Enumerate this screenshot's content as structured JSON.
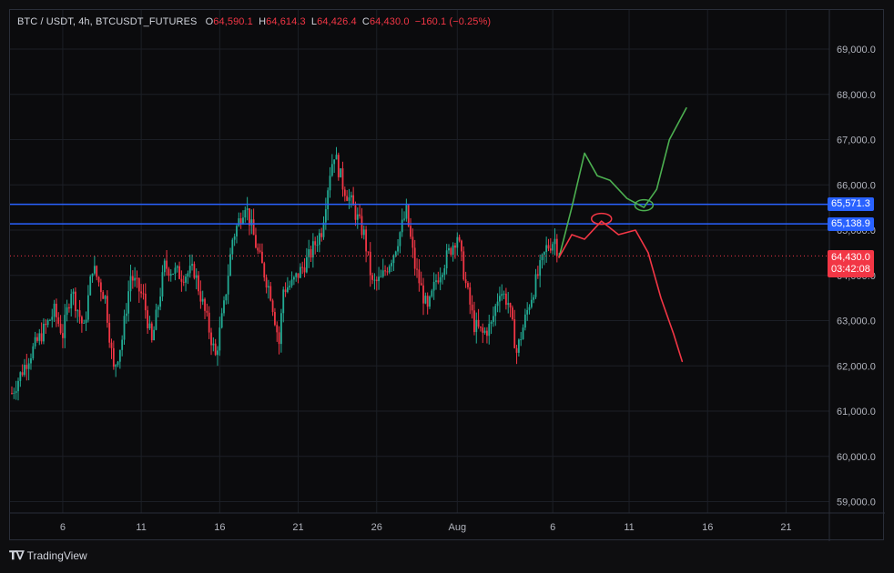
{
  "header": {
    "symbol": "BTC / USDT, 4h, BTCUSDT_FUTURES",
    "open_label": "O",
    "open": "64,590.1",
    "high_label": "H",
    "high": "64,614.3",
    "low_label": "L",
    "low": "64,426.4",
    "close_label": "C",
    "close": "64,430.0",
    "change": "−160.1 (−0.25%)"
  },
  "price_axis": {
    "ticks": [
      "69,000.0",
      "68,000.0",
      "67,000.0",
      "66,000.0",
      "65,000.0",
      "64,000.0",
      "63,000.0",
      "62,000.0",
      "61,000.0",
      "60,000.0",
      "59,000.0"
    ],
    "tick_values": [
      69000,
      68000,
      67000,
      66000,
      65000,
      64000,
      63000,
      62000,
      61000,
      60000,
      59000
    ]
  },
  "time_axis": {
    "labels": [
      "6",
      "11",
      "16",
      "21",
      "26",
      "Aug",
      "6",
      "11",
      "16",
      "21"
    ]
  },
  "levels": {
    "upper": {
      "value": 65571.3,
      "label": "65,571.3",
      "color": "#2962ff"
    },
    "lower": {
      "value": 65138.9,
      "label": "65,138.9",
      "color": "#2962ff"
    }
  },
  "current_price": {
    "value": 64430.0,
    "label": "64,430.0",
    "countdown": "03:42:08",
    "color": "#f23645"
  },
  "colors": {
    "up": "#22ab94",
    "down": "#f23645",
    "bull_projection": "#4caf50",
    "bear_projection": "#f23645"
  },
  "footer": {
    "brand": "TradingView",
    "logo_icon": "tradingview-logo-icon"
  },
  "chart_data": {
    "type": "candlestick",
    "title": "",
    "xlabel": "",
    "ylabel": "",
    "ylim": [
      58800,
      69600
    ],
    "interval": "4h",
    "x_ticks": [
      "6",
      "11",
      "16",
      "21",
      "26",
      "Aug",
      "6",
      "11",
      "16",
      "21"
    ],
    "horizontal_lines": [
      65571.3,
      65138.9
    ],
    "last_price": 64430.0,
    "close_path": [
      [
        0,
        61400
      ],
      [
        8,
        62200
      ],
      [
        14,
        62700
      ],
      [
        20,
        63200
      ],
      [
        24,
        62700
      ],
      [
        28,
        63700
      ],
      [
        34,
        62800
      ],
      [
        38,
        64200
      ],
      [
        44,
        63500
      ],
      [
        48,
        61900
      ],
      [
        52,
        62600
      ],
      [
        56,
        64000
      ],
      [
        62,
        63500
      ],
      [
        66,
        62500
      ],
      [
        72,
        64200
      ],
      [
        80,
        64000
      ],
      [
        86,
        64100
      ],
      [
        92,
        63000
      ],
      [
        96,
        62200
      ],
      [
        100,
        63300
      ],
      [
        104,
        64800
      ],
      [
        110,
        65600
      ],
      [
        116,
        64500
      ],
      [
        122,
        63600
      ],
      [
        126,
        62500
      ],
      [
        128,
        63700
      ],
      [
        132,
        63800
      ],
      [
        140,
        64400
      ],
      [
        146,
        65000
      ],
      [
        150,
        66300
      ],
      [
        152,
        66700
      ],
      [
        156,
        66000
      ],
      [
        160,
        65600
      ],
      [
        166,
        64900
      ],
      [
        170,
        63800
      ],
      [
        174,
        63900
      ],
      [
        180,
        64500
      ],
      [
        186,
        65400
      ],
      [
        190,
        64200
      ],
      [
        196,
        63200
      ],
      [
        200,
        63900
      ],
      [
        206,
        64500
      ],
      [
        210,
        64900
      ],
      [
        214,
        63800
      ],
      [
        218,
        62900
      ],
      [
        222,
        62700
      ],
      [
        226,
        62900
      ],
      [
        230,
        63700
      ],
      [
        234,
        63400
      ],
      [
        238,
        62300
      ],
      [
        244,
        63400
      ],
      [
        248,
        64000
      ],
      [
        252,
        64600
      ],
      [
        256,
        64800
      ],
      [
        258,
        64430
      ]
    ],
    "projections": [
      {
        "name": "",
        "color": "#4caf50",
        "points": [
          [
            258,
            64400
          ],
          [
            264,
            65500
          ],
          [
            270,
            66700
          ],
          [
            276,
            66200
          ],
          [
            282,
            66100
          ],
          [
            290,
            65700
          ],
          [
            298,
            65500
          ],
          [
            304,
            65900
          ],
          [
            310,
            67000
          ],
          [
            318,
            67700
          ]
        ]
      },
      {
        "name": "",
        "color": "#f23645",
        "points": [
          [
            258,
            64400
          ],
          [
            264,
            64900
          ],
          [
            270,
            64800
          ],
          [
            278,
            65200
          ],
          [
            286,
            64900
          ],
          [
            294,
            65000
          ],
          [
            300,
            64500
          ],
          [
            306,
            63500
          ],
          [
            312,
            62700
          ],
          [
            316,
            62100
          ]
        ]
      }
    ]
  }
}
